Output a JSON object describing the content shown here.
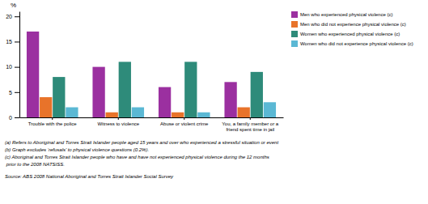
{
  "chart_data": {
    "type": "bar",
    "categories": [
      "Trouble with the police",
      "Witness to violence",
      "Abuse or violent crime",
      "You, a family member or a\nfriend spent time in jail"
    ],
    "series": [
      {
        "name": "Men who experienced physical violence (c)",
        "color": "#9B30A0",
        "values": [
          17,
          10,
          6,
          7
        ]
      },
      {
        "name": "Men who did not experience physical violence (c)",
        "color": "#E8732A",
        "values": [
          4,
          1,
          1,
          2
        ]
      },
      {
        "name": "Women who experienced physical violence (c)",
        "color": "#2E8B7A",
        "values": [
          8,
          11,
          11,
          9
        ]
      },
      {
        "name": "Women who did not experience physical violence (c)",
        "color": "#5BB8D4",
        "values": [
          2,
          2,
          1,
          3
        ]
      }
    ],
    "ylabel": "%",
    "ylim": [
      0,
      21
    ],
    "yticks": [
      0,
      5,
      10,
      15,
      20
    ],
    "grid": false,
    "legend": "right",
    "annotations": [
      "(a) Refers to Aboriginal and Torres Strait Islander people aged 15 years and over who experienced a stressful situation or event",
      "(b) Graph excludes ‘refusals’ to physical violence questions (0.2%).",
      "(c) Aboriginal and Torres Strait Islander people who have and have not experienced physical violence during the 12 months",
      " prior to the 2008 NATSISS.",
      "Source: ABS 2008 National Aboriginal and Torres Strait Islander Social Survey"
    ]
  }
}
